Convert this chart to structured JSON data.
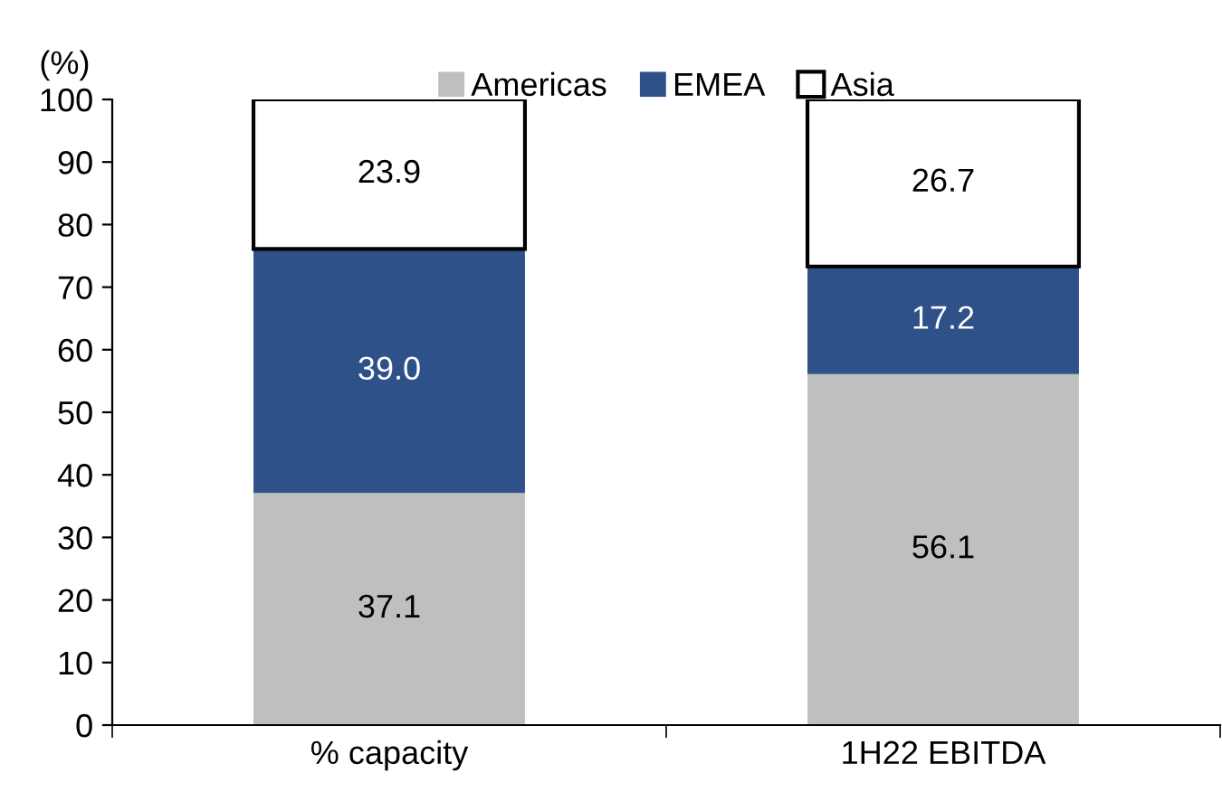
{
  "chart_data": {
    "type": "bar",
    "stacked": true,
    "ylabel": "(%)",
    "categories": [
      "% capacity",
      "1H22 EBITDA"
    ],
    "series": [
      {
        "name": "Americas",
        "color": "#bfbfbf",
        "values": [
          37.1,
          56.1
        ],
        "value_labels": [
          "37.1",
          "56.1"
        ]
      },
      {
        "name": "EMEA",
        "color": "#2f5189",
        "values": [
          39.0,
          17.2
        ],
        "value_labels": [
          "39.0",
          "17.2"
        ]
      },
      {
        "name": "Asia",
        "color": "#ffffff",
        "values": [
          23.9,
          26.7
        ],
        "value_labels": [
          "23.9",
          "26.7"
        ]
      }
    ],
    "ylim": [
      0,
      100
    ],
    "yticks": [
      0,
      10,
      20,
      30,
      40,
      50,
      60,
      70,
      80,
      90,
      100
    ],
    "grid": false,
    "legend": "top"
  }
}
